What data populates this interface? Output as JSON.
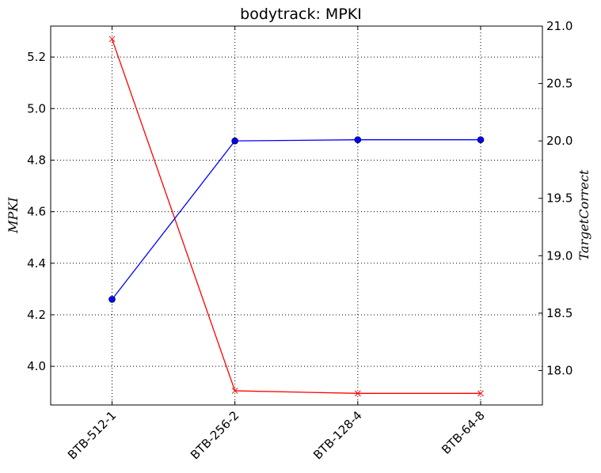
{
  "chart_data": {
    "type": "line",
    "title": "bodytrack: MPKI",
    "categories": [
      "BTB-512-1",
      "BTB-256-2",
      "BTB-128-4",
      "BTB-64-8"
    ],
    "ylabel": "MPKI",
    "ylabel_right": "TargetCorrect",
    "ylim": [
      3.85,
      5.32
    ],
    "ylim_right": [
      17.7,
      21.0
    ],
    "yticks": [
      "4.0",
      "4.2",
      "4.4",
      "4.6",
      "4.8",
      "5.0",
      "5.2"
    ],
    "yticks_right": [
      "18.0",
      "18.5",
      "19.0",
      "19.5",
      "20.0",
      "20.5",
      "21.0"
    ],
    "grid": true,
    "series": [
      {
        "axis": "left",
        "color": "#ff0000",
        "marker": "x",
        "values": [
          5.27,
          3.905,
          3.895,
          3.895
        ]
      },
      {
        "axis": "right",
        "color": "#0000ff",
        "marker": "o",
        "values": [
          18.62,
          20.0,
          20.01,
          20.01
        ]
      }
    ]
  }
}
